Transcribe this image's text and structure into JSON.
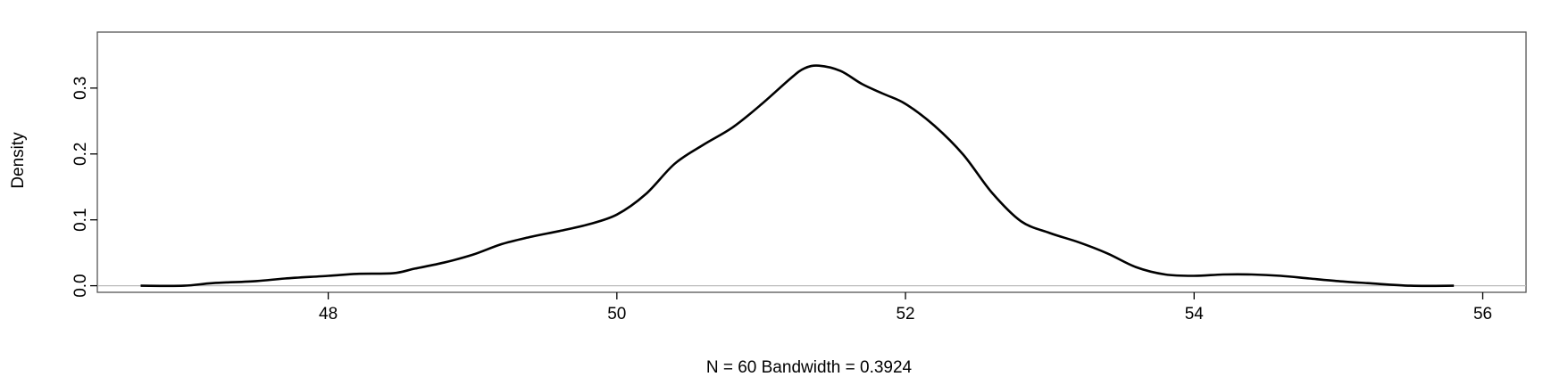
{
  "chart_data": {
    "type": "line",
    "title": "",
    "xlabel": "N = 60   Bandwidth = 0.3924",
    "ylabel": "Density",
    "xlim": [
      46.4,
      56.3
    ],
    "ylim": [
      -0.01,
      0.385
    ],
    "xticks": [
      48,
      50,
      52,
      54,
      56
    ],
    "xtick_labels": [
      "48",
      "50",
      "52",
      "54",
      "56"
    ],
    "yticks": [
      0.0,
      0.1,
      0.2,
      0.3
    ],
    "ytick_labels": [
      "0.0",
      "0.1",
      "0.2",
      "0.3"
    ],
    "zero_line": true,
    "grid": false,
    "series": [
      {
        "x": [
          46.7,
          47.0,
          47.2,
          47.5,
          47.7,
          48.0,
          48.2,
          48.45,
          48.6,
          48.8,
          49.0,
          49.2,
          49.4,
          49.6,
          49.8,
          50.0,
          50.2,
          50.4,
          50.6,
          50.8,
          51.0,
          51.2,
          51.3,
          51.4,
          51.55,
          51.7,
          51.85,
          52.0,
          52.2,
          52.4,
          52.6,
          52.8,
          53.0,
          53.2,
          53.4,
          53.6,
          53.8,
          54.0,
          54.2,
          54.4,
          54.6,
          54.8,
          55.0,
          55.2,
          55.5,
          55.8
        ],
        "y": [
          0.0,
          0.0,
          0.004,
          0.007,
          0.011,
          0.015,
          0.018,
          0.019,
          0.026,
          0.035,
          0.047,
          0.063,
          0.074,
          0.083,
          0.093,
          0.108,
          0.139,
          0.185,
          0.214,
          0.24,
          0.275,
          0.314,
          0.33,
          0.334,
          0.326,
          0.306,
          0.291,
          0.276,
          0.243,
          0.199,
          0.141,
          0.098,
          0.08,
          0.066,
          0.049,
          0.028,
          0.017,
          0.015,
          0.017,
          0.017,
          0.015,
          0.011,
          0.007,
          0.004,
          0.0,
          0.0
        ]
      }
    ]
  }
}
